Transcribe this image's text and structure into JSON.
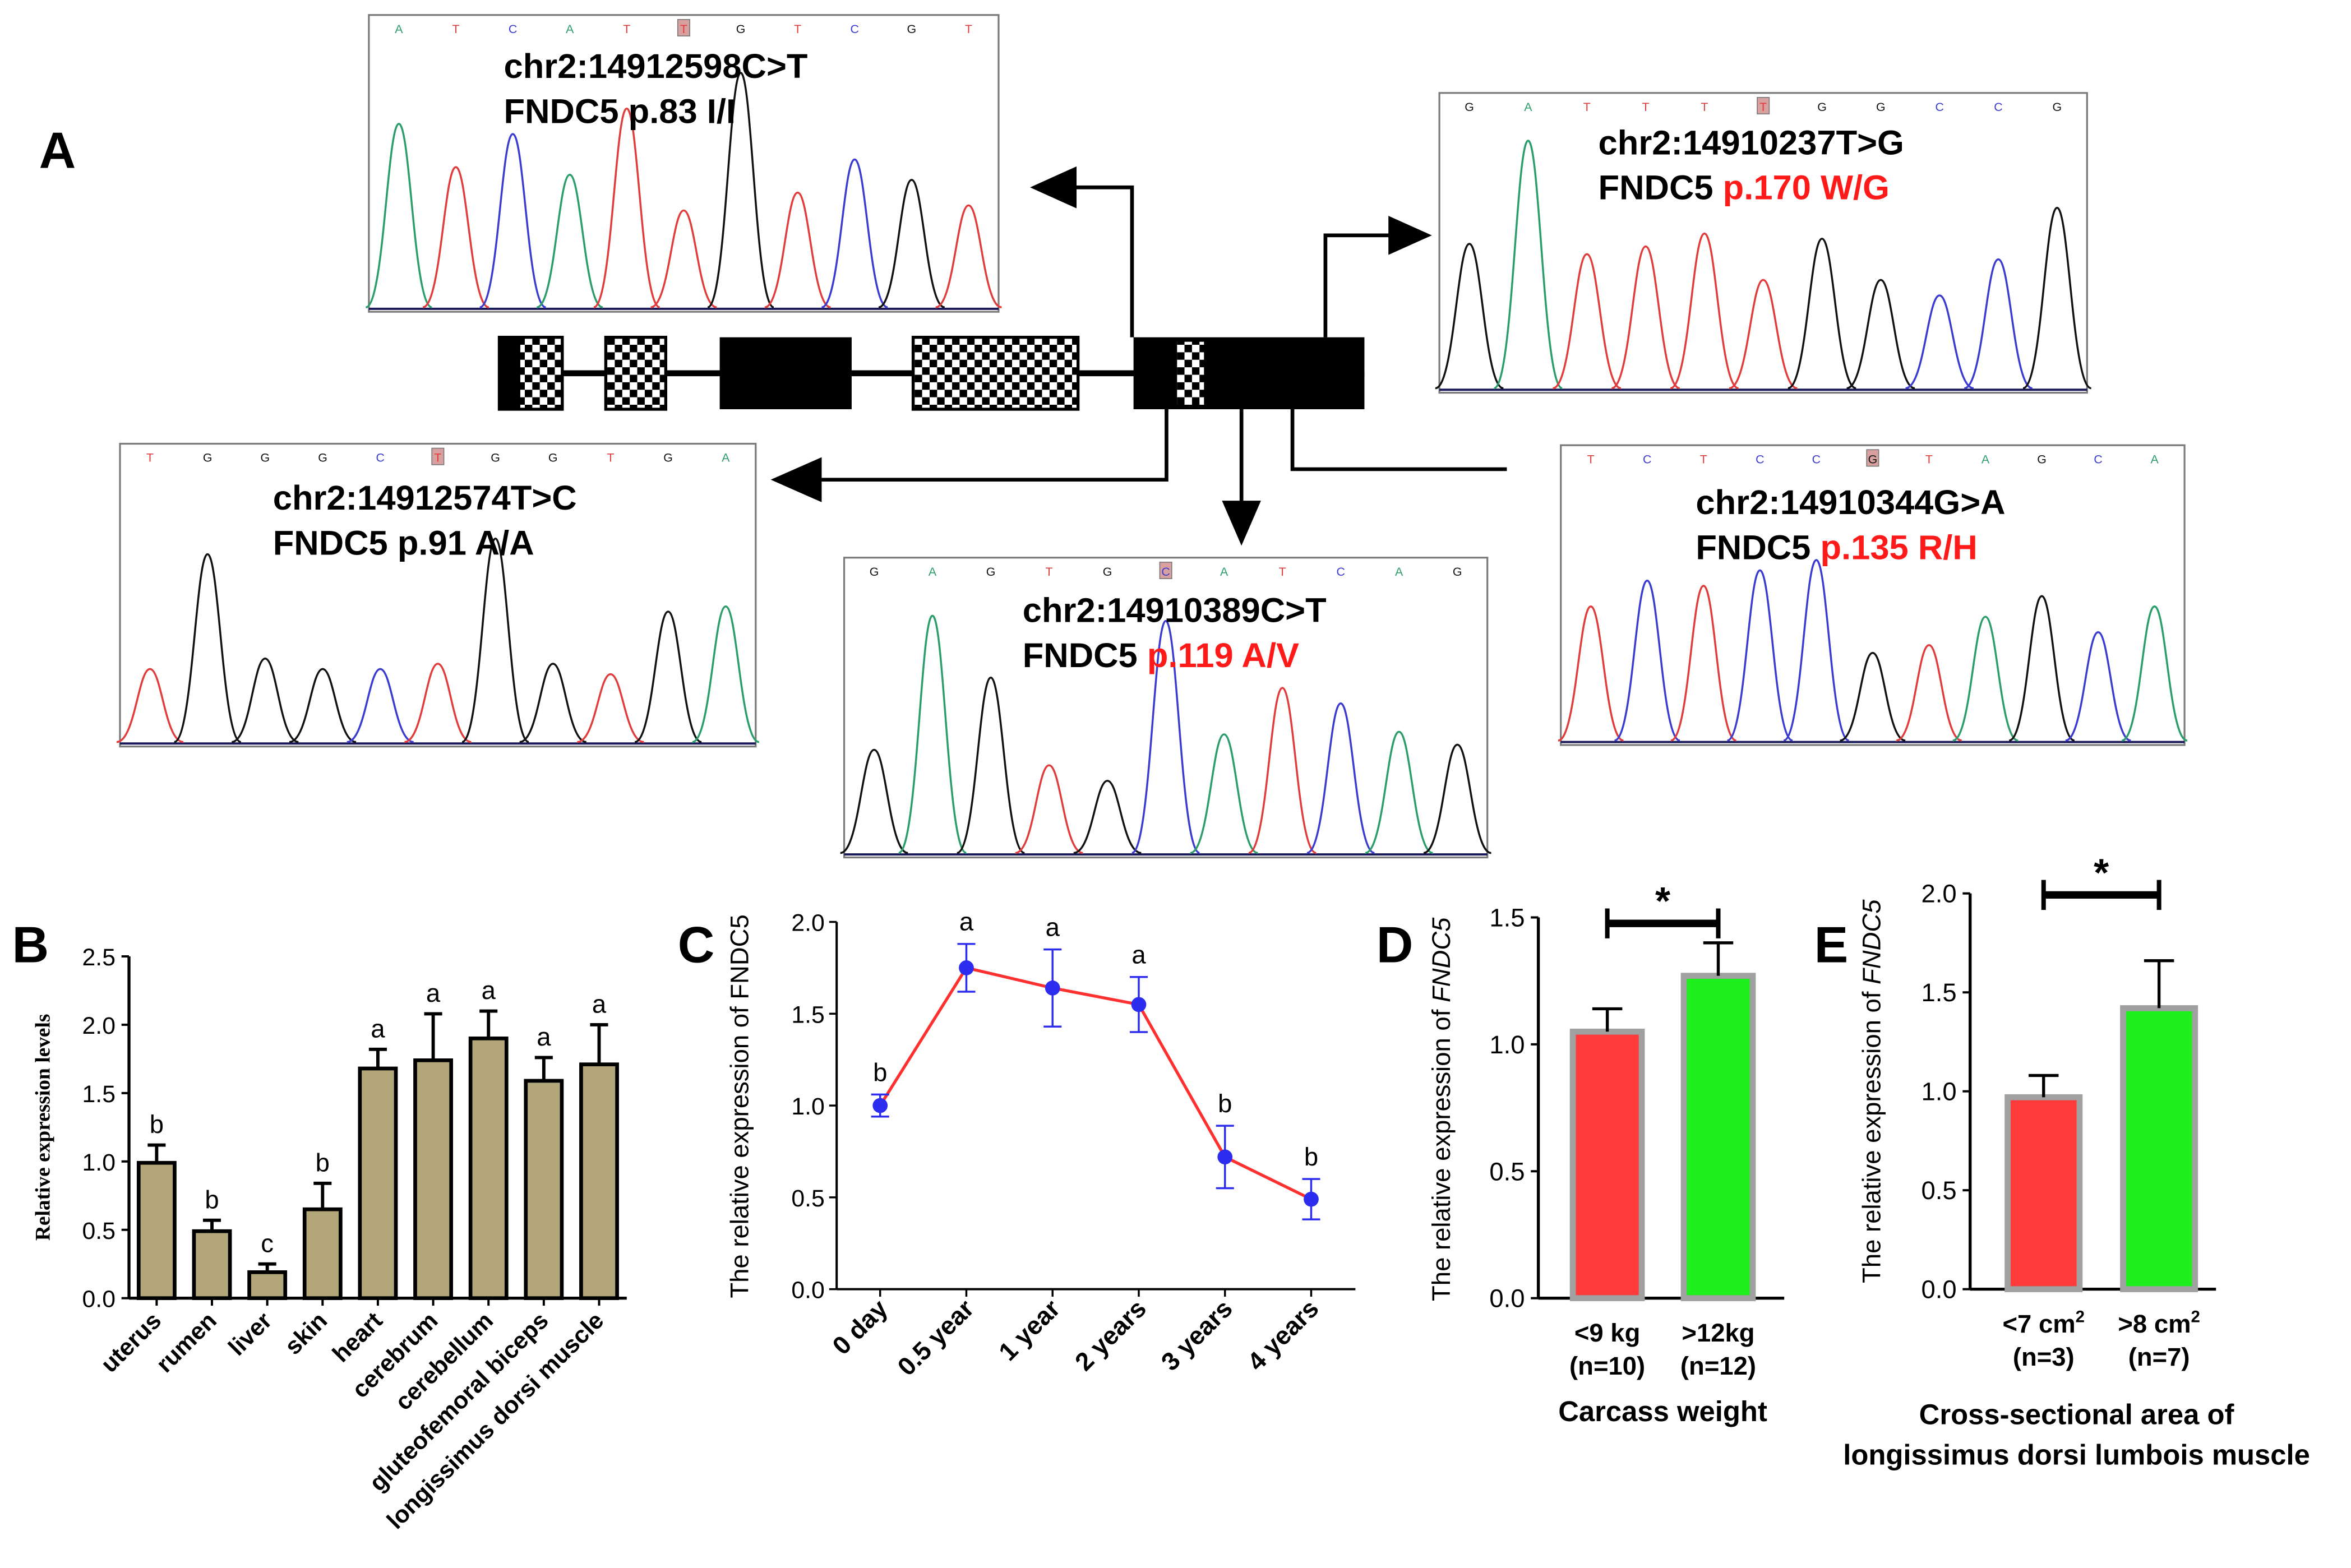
{
  "colors": {
    "red": "#ff3b3b",
    "green": "#1ef01e",
    "tan": "#b3a77a",
    "trace_A": "#2a9d6a",
    "trace_C": "#3b3bd0",
    "trace_G": "#111111",
    "trace_T": "#e03c3c",
    "lineC": "#ff3030",
    "pointC": "#2d2df0",
    "highlight": "#ff1a1a",
    "bar_outline": "#a0a0a0"
  },
  "panel_labels": {
    "A": "A",
    "B": "B",
    "C": "C",
    "D": "D",
    "E": "E"
  },
  "chart_data": [
    {
      "panel": "A",
      "type": "other",
      "chromatograms": [
        {
          "id": "s1",
          "bases": [
            "A",
            "T",
            "C",
            "A",
            "T",
            "T",
            "G",
            "T",
            "C",
            "G",
            "T"
          ],
          "mark": 5,
          "line1": "chr2:14912598C>T",
          "gene": "FNDC5",
          "change": "p.83 I/I",
          "change_red": false
        },
        {
          "id": "s2",
          "bases": [
            "G",
            "A",
            "T",
            "T",
            "T",
            "T",
            "G",
            "G",
            "C",
            "C",
            "G"
          ],
          "mark": 5,
          "line1": "chr2:14910237T>G",
          "gene": "FNDC5",
          "change": "p.170 W/G",
          "change_red": true
        },
        {
          "id": "s3",
          "bases": [
            "T",
            "G",
            "G",
            "G",
            "C",
            "T",
            "G",
            "G",
            "T",
            "G",
            "A"
          ],
          "mark": 5,
          "line1": "chr2:14912574T>C",
          "gene": "FNDC5",
          "change": "p.91 A/A",
          "change_red": false
        },
        {
          "id": "s4",
          "bases": [
            "G",
            "A",
            "G",
            "T",
            "G",
            "C",
            "A",
            "T",
            "C",
            "A",
            "G"
          ],
          "mark": 5,
          "line1": "chr2:14910389C>T",
          "gene": "FNDC5",
          "change": "p.119 A/V",
          "change_red": true
        },
        {
          "id": "s5",
          "bases": [
            "T",
            "C",
            "T",
            "C",
            "C",
            "G",
            "T",
            "A",
            "G",
            "C",
            "A"
          ],
          "mark": 5,
          "line1": "chr2:14910344G>A",
          "gene": "FNDC5",
          "change": "p.135 R/H",
          "change_red": true
        }
      ]
    },
    {
      "panel": "B",
      "type": "bar",
      "categories": [
        "uterus",
        "rumen",
        "liver",
        "skin",
        "heart",
        "cerebrum",
        "cerebellum",
        "gluteofemoral biceps",
        "longissimus dorsi muscle"
      ],
      "values": [
        0.99,
        0.49,
        0.19,
        0.65,
        1.68,
        1.74,
        1.9,
        1.59,
        1.71
      ],
      "errors": [
        0.13,
        0.08,
        0.06,
        0.19,
        0.14,
        0.34,
        0.2,
        0.17,
        0.29
      ],
      "letters": [
        "b",
        "b",
        "c",
        "b",
        "a",
        "a",
        "a",
        "a",
        "a"
      ],
      "ylabel": "Relative expression levels",
      "ylim": [
        0,
        2.5
      ],
      "yticks": [
        "0.0",
        "0.5",
        "1.0",
        "1.5",
        "2.0",
        "2.5"
      ]
    },
    {
      "panel": "C",
      "type": "line",
      "categories": [
        "0 day",
        "0.5 year",
        "1 year",
        "2 years",
        "3 years",
        "4 years"
      ],
      "values": [
        1.0,
        1.75,
        1.64,
        1.55,
        0.72,
        0.49
      ],
      "errors": [
        0.06,
        0.13,
        0.21,
        0.15,
        0.17,
        0.11
      ],
      "letters": [
        "b",
        "a",
        "a",
        "a",
        "b",
        "b"
      ],
      "ylabel": "The relative expression of FNDC5",
      "ylim": [
        0,
        2.0
      ],
      "yticks": [
        "0.0",
        "0.5",
        "1.0",
        "1.5",
        "2.0"
      ]
    },
    {
      "panel": "D",
      "type": "bar",
      "categories": [
        "<9 kg",
        ">12kg"
      ],
      "category_n": [
        "(n=10)",
        "(n=12)"
      ],
      "values": [
        1.05,
        1.27
      ],
      "errors": [
        0.09,
        0.13
      ],
      "significance": "*",
      "ylabel_prefix": "The relative expression of ",
      "ylabel_gene": "FNDC5",
      "xlabel": "Carcass weight",
      "ylim": [
        0,
        1.5
      ],
      "yticks": [
        "0.0",
        "0.5",
        "1.0",
        "1.5"
      ]
    },
    {
      "panel": "E",
      "type": "bar",
      "categories": [
        "<7 cm",
        ">8 cm"
      ],
      "category_sup": "2",
      "category_n": [
        "(n=3)",
        "(n=7)"
      ],
      "values": [
        0.97,
        1.42
      ],
      "errors": [
        0.11,
        0.24
      ],
      "significance": "*",
      "ylabel_prefix": "The relative expression of ",
      "ylabel_gene": "FNDC5",
      "xlabel": "Cross-sectional area of",
      "xlabel2": "longissimus dorsi lumbois muscle",
      "ylim": [
        0,
        2.0
      ],
      "yticks": [
        "0.0",
        "0.5",
        "1.0",
        "1.5",
        "2.0"
      ]
    }
  ]
}
